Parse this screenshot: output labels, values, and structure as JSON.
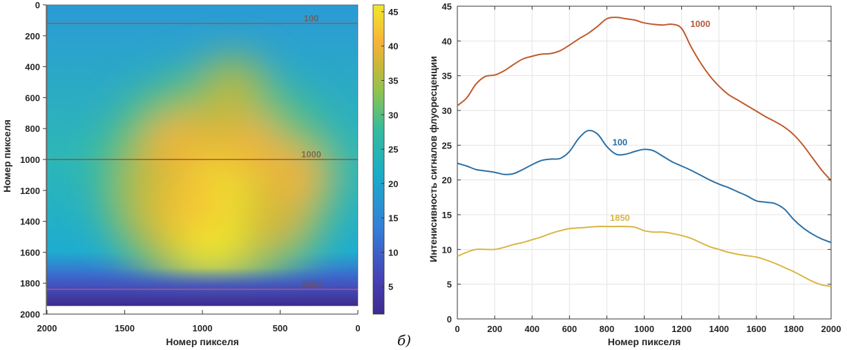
{
  "chart_data": [
    {
      "type": "heatmap",
      "title": "",
      "xlabel": "Номер пикселя",
      "ylabel": "Номер пикселя",
      "xlim": [
        2000,
        0
      ],
      "ylim": [
        0,
        2000
      ],
      "x_ticks": [
        "2000",
        "1500",
        "1000",
        "500",
        "0"
      ],
      "y_ticks": [
        "0",
        "200",
        "400",
        "600",
        "800",
        "1000",
        "1200",
        "1400",
        "1600",
        "1800",
        "2000"
      ],
      "colormap": "parula",
      "colorbar": {
        "range": [
          1,
          46
        ],
        "ticks": [
          "5",
          "10",
          "15",
          "20",
          "25",
          "30",
          "35",
          "40",
          "45"
        ]
      },
      "profile_lines": [
        {
          "label": "100",
          "y": 120
        },
        {
          "label": "1000",
          "y": 1000
        },
        {
          "label": "1850",
          "y": 1840
        }
      ],
      "hotspots": [
        {
          "x": 950,
          "y": 1500,
          "value": 46
        },
        {
          "x": 900,
          "y": 1200,
          "value": 45
        },
        {
          "x": 1100,
          "y": 1300,
          "value": 42
        },
        {
          "x": 700,
          "y": 900,
          "value": 40
        },
        {
          "x": 1150,
          "y": 900,
          "value": 40
        },
        {
          "x": 400,
          "y": 1100,
          "value": 40
        },
        {
          "x": 500,
          "y": 1400,
          "value": 38
        },
        {
          "x": 800,
          "y": 500,
          "value": 36
        }
      ],
      "grid": false
    },
    {
      "type": "line",
      "title": "",
      "xlabel": "Номер пикселя",
      "ylabel": "Интенисивность сигналов флуоресценции",
      "xlim": [
        0,
        2000
      ],
      "ylim": [
        0,
        45
      ],
      "x_ticks": [
        "0",
        "200",
        "400",
        "600",
        "800",
        "1000",
        "1200",
        "1400",
        "1600",
        "1800",
        "2000"
      ],
      "y_ticks": [
        "0",
        "5",
        "10",
        "15",
        "20",
        "25",
        "30",
        "35",
        "40",
        "45"
      ],
      "grid": true,
      "series": [
        {
          "name": "1000",
          "color": "#c0582b",
          "x": [
            0,
            50,
            100,
            150,
            200,
            250,
            300,
            350,
            400,
            450,
            500,
            550,
            600,
            650,
            700,
            750,
            800,
            850,
            900,
            950,
            1000,
            1050,
            1100,
            1150,
            1200,
            1250,
            1300,
            1350,
            1400,
            1450,
            1500,
            1550,
            1600,
            1650,
            1700,
            1750,
            1800,
            1850,
            1900,
            1950,
            2000
          ],
          "values": [
            30.7,
            31.8,
            33.8,
            34.9,
            35.1,
            35.7,
            36.6,
            37.4,
            37.8,
            38.1,
            38.2,
            38.6,
            39.4,
            40.3,
            41.1,
            42.1,
            43.2,
            43.4,
            43.2,
            43.0,
            42.6,
            42.4,
            42.3,
            42.4,
            41.8,
            39.2,
            36.9,
            35.0,
            33.5,
            32.3,
            31.5,
            30.7,
            29.9,
            29.1,
            28.4,
            27.6,
            26.5,
            25.0,
            23.2,
            21.4,
            19.9
          ]
        },
        {
          "name": "100",
          "color": "#2a6fa5",
          "x": [
            0,
            50,
            100,
            150,
            200,
            250,
            300,
            350,
            400,
            450,
            500,
            550,
            600,
            650,
            700,
            750,
            800,
            850,
            900,
            950,
            1000,
            1050,
            1100,
            1150,
            1200,
            1250,
            1300,
            1350,
            1400,
            1450,
            1500,
            1550,
            1600,
            1650,
            1700,
            1750,
            1800,
            1850,
            1900,
            1950,
            2000
          ],
          "values": [
            22.4,
            22.0,
            21.5,
            21.3,
            21.1,
            20.8,
            20.9,
            21.5,
            22.2,
            22.8,
            23.0,
            23.1,
            24.1,
            26.0,
            27.1,
            26.6,
            24.8,
            23.7,
            23.7,
            24.1,
            24.4,
            24.2,
            23.4,
            22.6,
            22.0,
            21.4,
            20.7,
            20.0,
            19.4,
            18.9,
            18.3,
            17.7,
            17.0,
            16.8,
            16.6,
            15.8,
            14.3,
            13.1,
            12.2,
            11.5,
            11.0
          ]
        },
        {
          "name": "1850",
          "color": "#d9b540",
          "x": [
            0,
            50,
            100,
            150,
            200,
            250,
            300,
            350,
            400,
            450,
            500,
            550,
            600,
            650,
            700,
            750,
            800,
            850,
            900,
            950,
            1000,
            1050,
            1100,
            1150,
            1200,
            1250,
            1300,
            1350,
            1400,
            1450,
            1500,
            1550,
            1600,
            1650,
            1700,
            1750,
            1800,
            1850,
            1900,
            1950,
            2000
          ],
          "values": [
            9.0,
            9.6,
            10.0,
            10.0,
            10.0,
            10.3,
            10.7,
            11.0,
            11.4,
            11.8,
            12.3,
            12.7,
            13.0,
            13.1,
            13.2,
            13.3,
            13.3,
            13.3,
            13.3,
            13.2,
            12.7,
            12.5,
            12.5,
            12.3,
            12.0,
            11.6,
            11.0,
            10.4,
            10.0,
            9.6,
            9.3,
            9.1,
            8.9,
            8.5,
            8.0,
            7.4,
            6.8,
            6.1,
            5.4,
            4.9,
            4.7
          ]
        }
      ],
      "annotations": [
        {
          "text": "1000",
          "x": 1300,
          "y": 42,
          "color": "#b5573a"
        },
        {
          "text": "100",
          "x": 870,
          "y": 25,
          "color": "#2a6fa5"
        },
        {
          "text": "1850",
          "x": 870,
          "y": 14.1,
          "color": "#d9b540"
        }
      ]
    }
  ],
  "panel_label": "б)"
}
